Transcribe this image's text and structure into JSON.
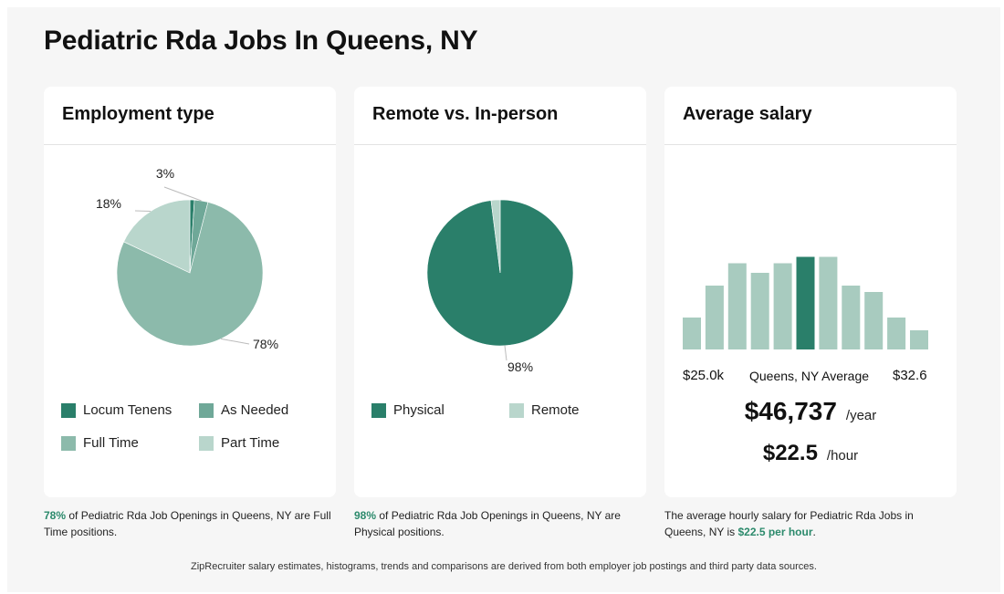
{
  "page": {
    "title": "Pediatric Rda Jobs In Queens, NY"
  },
  "colors": {
    "dark": "#2a7f6a",
    "mid": "#6fa898",
    "light": "#8cbaab",
    "pale": "#b9d6cc",
    "bar": "#a8cbbf",
    "accent": "#2c8a6c"
  },
  "cards": {
    "employment": {
      "title": "Employment type",
      "legend": [
        "Locum Tenens",
        "As Needed",
        "Full Time",
        "Part Time"
      ],
      "caption_pct": "78%",
      "caption_rest": " of Pediatric Rda Job Openings in Queens, NY are Full Time positions."
    },
    "remote": {
      "title": "Remote vs. In-person",
      "legend": [
        "Physical",
        "Remote"
      ],
      "caption_pct": "98%",
      "caption_rest": " of Pediatric Rda Job Openings in Queens, NY are Physical positions."
    },
    "salary": {
      "title": "Average salary",
      "min_label": "$25.0k",
      "avg_label": "Queens, NY Average",
      "max_label": "$32.6",
      "yearly": "$46,737",
      "yearly_unit": "/year",
      "hourly": "$22.5",
      "hourly_unit": "/hour",
      "caption_pre": "The average hourly salary for Pediatric Rda Jobs in Queens, NY is ",
      "caption_hl": "$22.5 per hour",
      "caption_post": "."
    }
  },
  "footer": "ZipRecruiter salary estimates, histograms, trends and comparisons are derived from both employer job postings and third party data sources.",
  "chart_data": [
    {
      "type": "pie",
      "title": "Employment type",
      "categories": [
        "Locum Tenens",
        "As Needed",
        "Full Time",
        "Part Time"
      ],
      "values": [
        1,
        3,
        78,
        18
      ],
      "labels": [
        "",
        "3%",
        "78%",
        "18%"
      ]
    },
    {
      "type": "pie",
      "title": "Remote vs. In-person",
      "categories": [
        "Physical",
        "Remote"
      ],
      "values": [
        98,
        2
      ],
      "labels": [
        "98%",
        ""
      ]
    },
    {
      "type": "bar",
      "title": "Average salary",
      "values": [
        5,
        10,
        13.5,
        12,
        13.5,
        14.5,
        14.5,
        10,
        9,
        5,
        3
      ],
      "highlight_index": 5
    }
  ]
}
